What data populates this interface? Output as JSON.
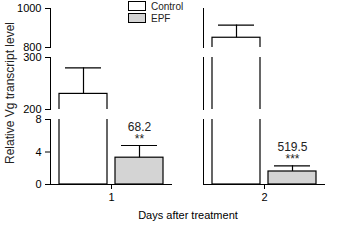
{
  "chart_data": {
    "type": "bar",
    "x_label": "Days after treatment",
    "y_label": "Relative Vg transcript level",
    "categories": [
      "1",
      "2"
    ],
    "series": [
      {
        "name": "Control",
        "color": "#ffffff",
        "values": [
          230,
          850
        ],
        "errors": [
          50,
          65
        ]
      },
      {
        "name": "EPF",
        "color": "#d4d4d4",
        "values": [
          3.3,
          1.6
        ],
        "errors": [
          1.5,
          0.7
        ]
      }
    ],
    "annotations": [
      {
        "category": "1",
        "series": "EPF",
        "lines": [
          "68.2",
          "**"
        ]
      },
      {
        "category": "2",
        "series": "EPF",
        "lines": [
          "519.5",
          "***"
        ]
      }
    ],
    "ylim": [
      0,
      1000
    ],
    "y_breaks": [
      [
        8,
        200
      ],
      [
        300,
        800
      ]
    ],
    "yticks": [
      0,
      4,
      8,
      200,
      300,
      800,
      1000
    ],
    "legend": "top",
    "grid": false
  }
}
